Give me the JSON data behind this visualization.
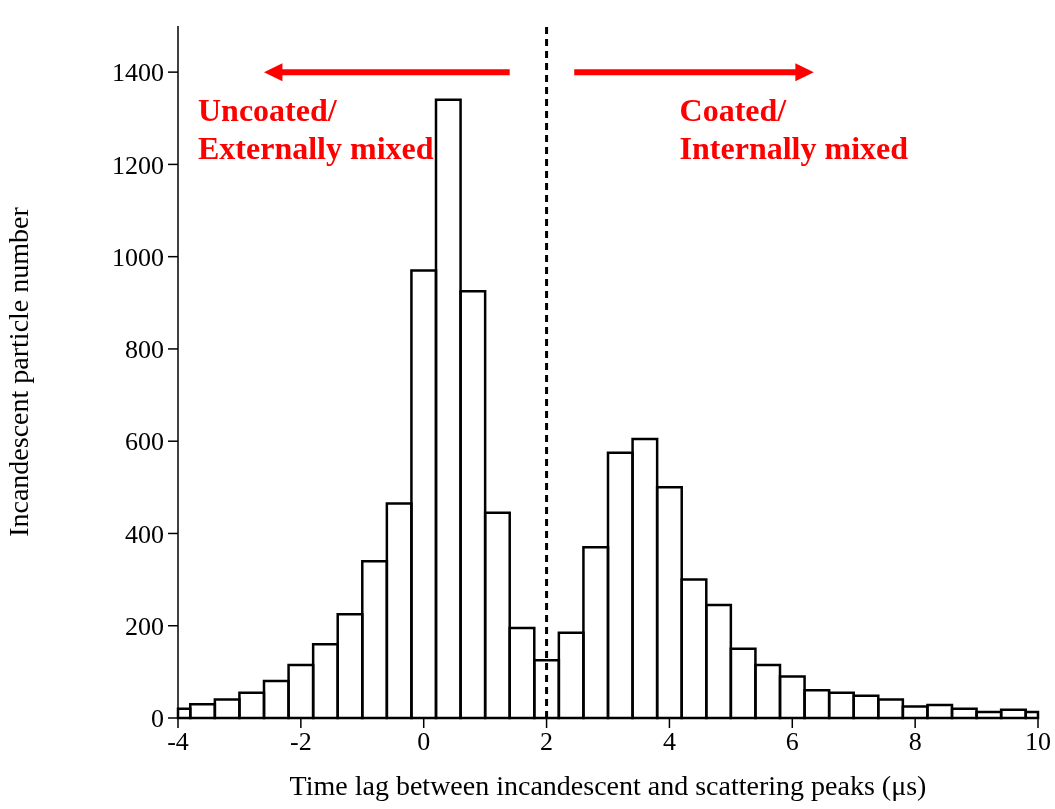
{
  "chart_data": {
    "type": "histogram",
    "xlabel": "Time lag between incandescent and scattering peaks (μs)",
    "ylabel": "Incandescent particle number",
    "bins": [
      -4,
      -3.8,
      -3.4,
      -3.0,
      -2.6,
      -2.2,
      -1.8,
      -1.4,
      -1.0,
      -0.6,
      -0.2,
      0.2,
      0.6,
      1.0,
      1.4,
      1.8,
      2.2,
      2.6,
      3.0,
      3.4,
      3.8,
      4.2,
      4.6,
      5.0,
      5.4,
      5.8,
      6.2,
      6.6,
      7.0,
      7.4,
      7.8,
      8.2,
      8.6,
      9.0,
      9.4,
      9.8,
      10
    ],
    "values": [
      20,
      30,
      40,
      55,
      80,
      115,
      160,
      225,
      340,
      465,
      970,
      1340,
      925,
      445,
      195,
      125,
      185,
      370,
      575,
      605,
      500,
      300,
      245,
      150,
      115,
      90,
      60,
      55,
      48,
      40,
      25,
      28,
      20,
      13,
      18,
      13
    ],
    "color": "#000000",
    "xlim": [
      -4,
      10
    ],
    "xticks": [
      -4,
      -2,
      0,
      2,
      4,
      6,
      8,
      10
    ],
    "ylim": [
      0,
      1500
    ],
    "yticks": [
      0,
      200,
      400,
      600,
      800,
      1000,
      1200,
      1400
    ],
    "ref_lines": [
      {
        "axis": "x",
        "value": 2,
        "label": null,
        "color": "#000000",
        "line_style": "dashed"
      }
    ],
    "annotations": [
      "Uncoated/\nExternally mixed",
      "Coated/\nInternally mixed"
    ]
  }
}
